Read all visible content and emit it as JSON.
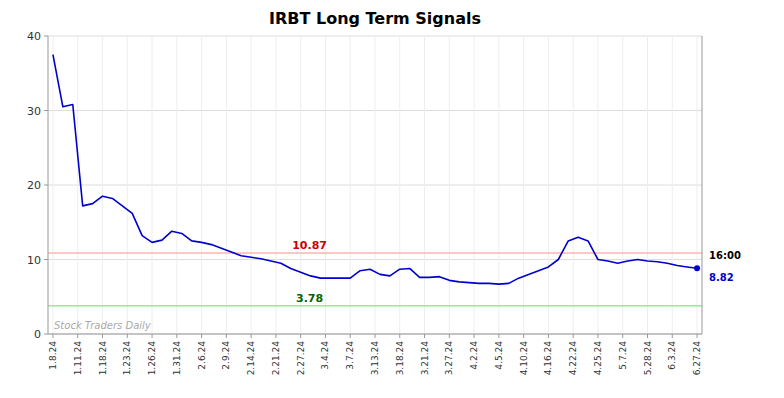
{
  "chart_data": {
    "type": "line",
    "title": "IRBT Long Term Signals",
    "values": [
      37.5,
      30.5,
      30.8,
      17.2,
      17.5,
      18.5,
      18.2,
      17.2,
      16.2,
      13.2,
      12.3,
      12.6,
      13.8,
      13.5,
      12.5,
      12.3,
      12.0,
      11.5,
      11.0,
      10.5,
      10.3,
      10.1,
      9.8,
      9.5,
      8.8,
      8.3,
      7.8,
      7.5,
      7.5,
      7.5,
      7.5,
      8.5,
      8.7,
      8.0,
      7.8,
      8.7,
      8.8,
      7.6,
      7.6,
      7.7,
      7.2,
      7.0,
      6.9,
      6.8,
      6.8,
      6.7,
      6.8,
      7.5,
      8.0,
      8.5,
      9.0,
      10.0,
      12.5,
      13.0,
      12.5,
      10.0,
      9.8,
      9.5,
      9.8,
      10.0,
      9.8,
      9.7,
      9.5,
      9.2,
      9.0,
      8.82
    ],
    "color": "#0000cc",
    "xlim": [
      -0.5,
      65.5
    ],
    "xticks": [
      {
        "value": 0,
        "label": "1.8.24"
      },
      {
        "value": 2.5,
        "label": "1.11.24"
      },
      {
        "value": 5,
        "label": "1.18.24"
      },
      {
        "value": 7.5,
        "label": "1.23.24"
      },
      {
        "value": 10,
        "label": "1.26.24"
      },
      {
        "value": 12.5,
        "label": "1.31.24"
      },
      {
        "value": 15,
        "label": "2.6.24"
      },
      {
        "value": 17.5,
        "label": "2.9.24"
      },
      {
        "value": 20,
        "label": "2.14.24"
      },
      {
        "value": 22.5,
        "label": "2.21.24"
      },
      {
        "value": 25,
        "label": "2.27.24"
      },
      {
        "value": 27.5,
        "label": "3.4.24"
      },
      {
        "value": 30,
        "label": "3.7.24"
      },
      {
        "value": 32.5,
        "label": "3.13.24"
      },
      {
        "value": 35,
        "label": "3.18.24"
      },
      {
        "value": 37.5,
        "label": "3.21.24"
      },
      {
        "value": 40,
        "label": "3.27.24"
      },
      {
        "value": 42.5,
        "label": "4.2.24"
      },
      {
        "value": 45,
        "label": "4.5.24"
      },
      {
        "value": 47.5,
        "label": "4.10.24"
      },
      {
        "value": 50,
        "label": "4.16.24"
      },
      {
        "value": 52.5,
        "label": "4.22.24"
      },
      {
        "value": 55,
        "label": "4.25.24"
      },
      {
        "value": 57.5,
        "label": "5.7.24"
      },
      {
        "value": 60,
        "label": "5.28.24"
      },
      {
        "value": 62.5,
        "label": "6.3.24"
      },
      {
        "value": 65,
        "label": "6.27.24"
      }
    ],
    "ylim": [
      0,
      40
    ],
    "yticks": [
      0,
      10,
      20,
      30,
      40
    ],
    "grid": true,
    "reference_lines": [
      {
        "value": 10.87,
        "label": "10.87",
        "color": "#ffb3b3",
        "label_color": "#cc0000"
      },
      {
        "value": 3.78,
        "label": "3.78",
        "color": "#90ee90",
        "label_color": "#006600"
      }
    ],
    "end_labels": [
      {
        "text": "16:00",
        "color": "#000000"
      },
      {
        "text": "8.82",
        "color": "#0000cc"
      }
    ],
    "watermark": {
      "text": "Stock Traders Daily",
      "color": "#aaaaaa"
    }
  }
}
